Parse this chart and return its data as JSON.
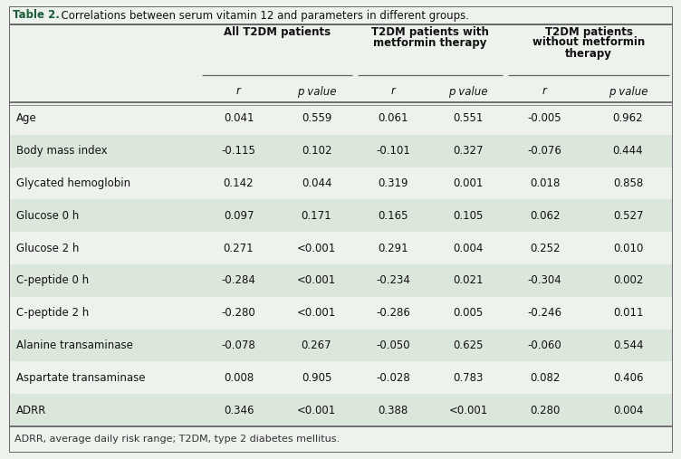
{
  "title_bold": "Table 2.",
  "title_rest": "  Correlations between serum vitamin 12 and parameters in different groups.",
  "group_labels": [
    "All T2DM patients",
    "T2DM patients with\nmetformin therapy",
    "T2DM patients\nwithout metformin\ntherapy"
  ],
  "col_headers": [
    "r",
    "p value",
    "r",
    "p value",
    "r",
    "p value"
  ],
  "rows": [
    {
      "param": "Age",
      "vals": [
        "0.041",
        "0.559",
        "0.061",
        "0.551",
        "-0.005",
        "0.962"
      ]
    },
    {
      "param": "Body mass index",
      "vals": [
        "-0.115",
        "0.102",
        "-0.101",
        "0.327",
        "-0.076",
        "0.444"
      ]
    },
    {
      "param": "Glycated hemoglobin",
      "vals": [
        "0.142",
        "0.044",
        "0.319",
        "0.001",
        "0.018",
        "0.858"
      ]
    },
    {
      "param": "Glucose 0 h",
      "vals": [
        "0.097",
        "0.171",
        "0.165",
        "0.105",
        "0.062",
        "0.527"
      ]
    },
    {
      "param": "Glucose 2 h",
      "vals": [
        "0.271",
        "<0.001",
        "0.291",
        "0.004",
        "0.252",
        "0.010"
      ]
    },
    {
      "param": "C-peptide 0 h",
      "vals": [
        "-0.284",
        "<0.001",
        "-0.234",
        "0.021",
        "-0.304",
        "0.002"
      ]
    },
    {
      "param": "C-peptide 2 h",
      "vals": [
        "-0.280",
        "<0.001",
        "-0.286",
        "0.005",
        "-0.246",
        "0.011"
      ]
    },
    {
      "param": "Alanine transaminase",
      "vals": [
        "-0.078",
        "0.267",
        "-0.050",
        "0.625",
        "-0.060",
        "0.544"
      ]
    },
    {
      "param": "Aspartate transaminase",
      "vals": [
        "0.008",
        "0.905",
        "-0.028",
        "0.783",
        "0.082",
        "0.406"
      ]
    },
    {
      "param": "ADRR",
      "vals": [
        "0.346",
        "<0.001",
        "0.388",
        "<0.001",
        "0.280",
        "0.004"
      ]
    }
  ],
  "footnote": "ADRR, average daily risk range; T2DM, type 2 diabetes mellitus.",
  "bg_color": "#edf2ed",
  "stripe_color": "#dce7dc",
  "line_color": "#666666",
  "text_color": "#111111",
  "title_color": "#1a5c38",
  "font_size": 8.5
}
